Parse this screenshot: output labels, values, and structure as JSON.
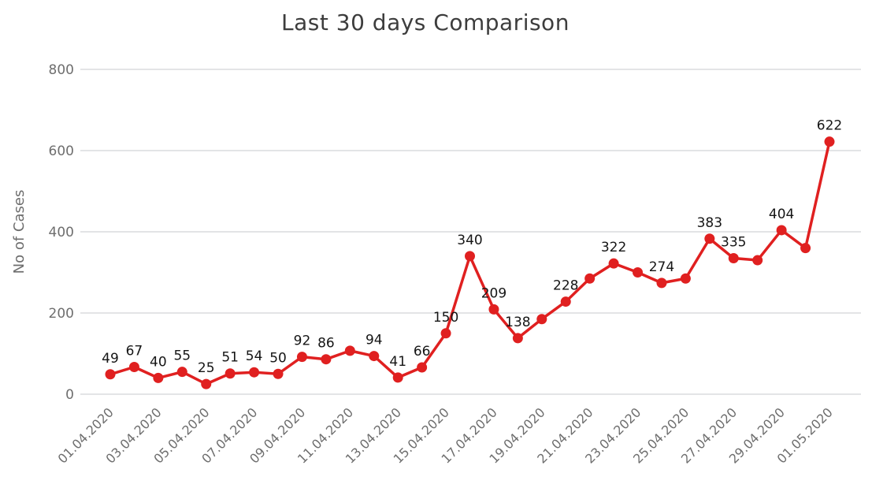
{
  "title": "Last 30 days Comparison",
  "chart_data": {
    "type": "line",
    "title": "Last 30 days Comparison",
    "xlabel": "",
    "ylabel": "No of Cases",
    "ylim": [
      0,
      800
    ],
    "yticks": [
      0,
      200,
      400,
      600,
      800
    ],
    "grid": "horizontal",
    "legend": "none",
    "line_color": "#e02020",
    "marker_color": "#e02020",
    "x": [
      "01.04.2020",
      "02.04.2020",
      "03.04.2020",
      "04.04.2020",
      "05.04.2020",
      "06.04.2020",
      "07.04.2020",
      "08.04.2020",
      "09.04.2020",
      "10.04.2020",
      "11.04.2020",
      "12.04.2020",
      "13.04.2020",
      "14.04.2020",
      "15.04.2020",
      "16.04.2020",
      "17.04.2020",
      "18.04.2020",
      "19.04.2020",
      "20.04.2020",
      "21.04.2020",
      "22.04.2020",
      "23.04.2020",
      "24.04.2020",
      "25.04.2020",
      "26.04.2020",
      "27.04.2020",
      "28.04.2020",
      "29.04.2020",
      "30.04.2020",
      "01.05.2020"
    ],
    "x_tick_labels": [
      "01.04.2020",
      "03.04.2020",
      "05.04.2020",
      "07.04.2020",
      "09.04.2020",
      "11.04.2020",
      "13.04.2020",
      "15.04.2020",
      "17.04.2020",
      "19.04.2020",
      "21.04.2020",
      "23.04.2020",
      "25.04.2020",
      "27.04.2020",
      "29.04.2020",
      "01.05.2020"
    ],
    "values": [
      49,
      67,
      40,
      55,
      25,
      51,
      54,
      50,
      92,
      86,
      107,
      94,
      41,
      66,
      150,
      340,
      209,
      138,
      185,
      228,
      285,
      322,
      300,
      274,
      285,
      383,
      335,
      330,
      404,
      360,
      622
    ],
    "point_labels": [
      "49",
      "67",
      "40",
      "55",
      "25",
      "51",
      "54",
      "50",
      "92",
      "86",
      "",
      "94",
      "41",
      "66",
      "150",
      "340",
      "209",
      "138",
      "",
      "228",
      "",
      "322",
      "",
      "274",
      "",
      "383",
      "335",
      "",
      "404",
      "",
      "622"
    ]
  }
}
